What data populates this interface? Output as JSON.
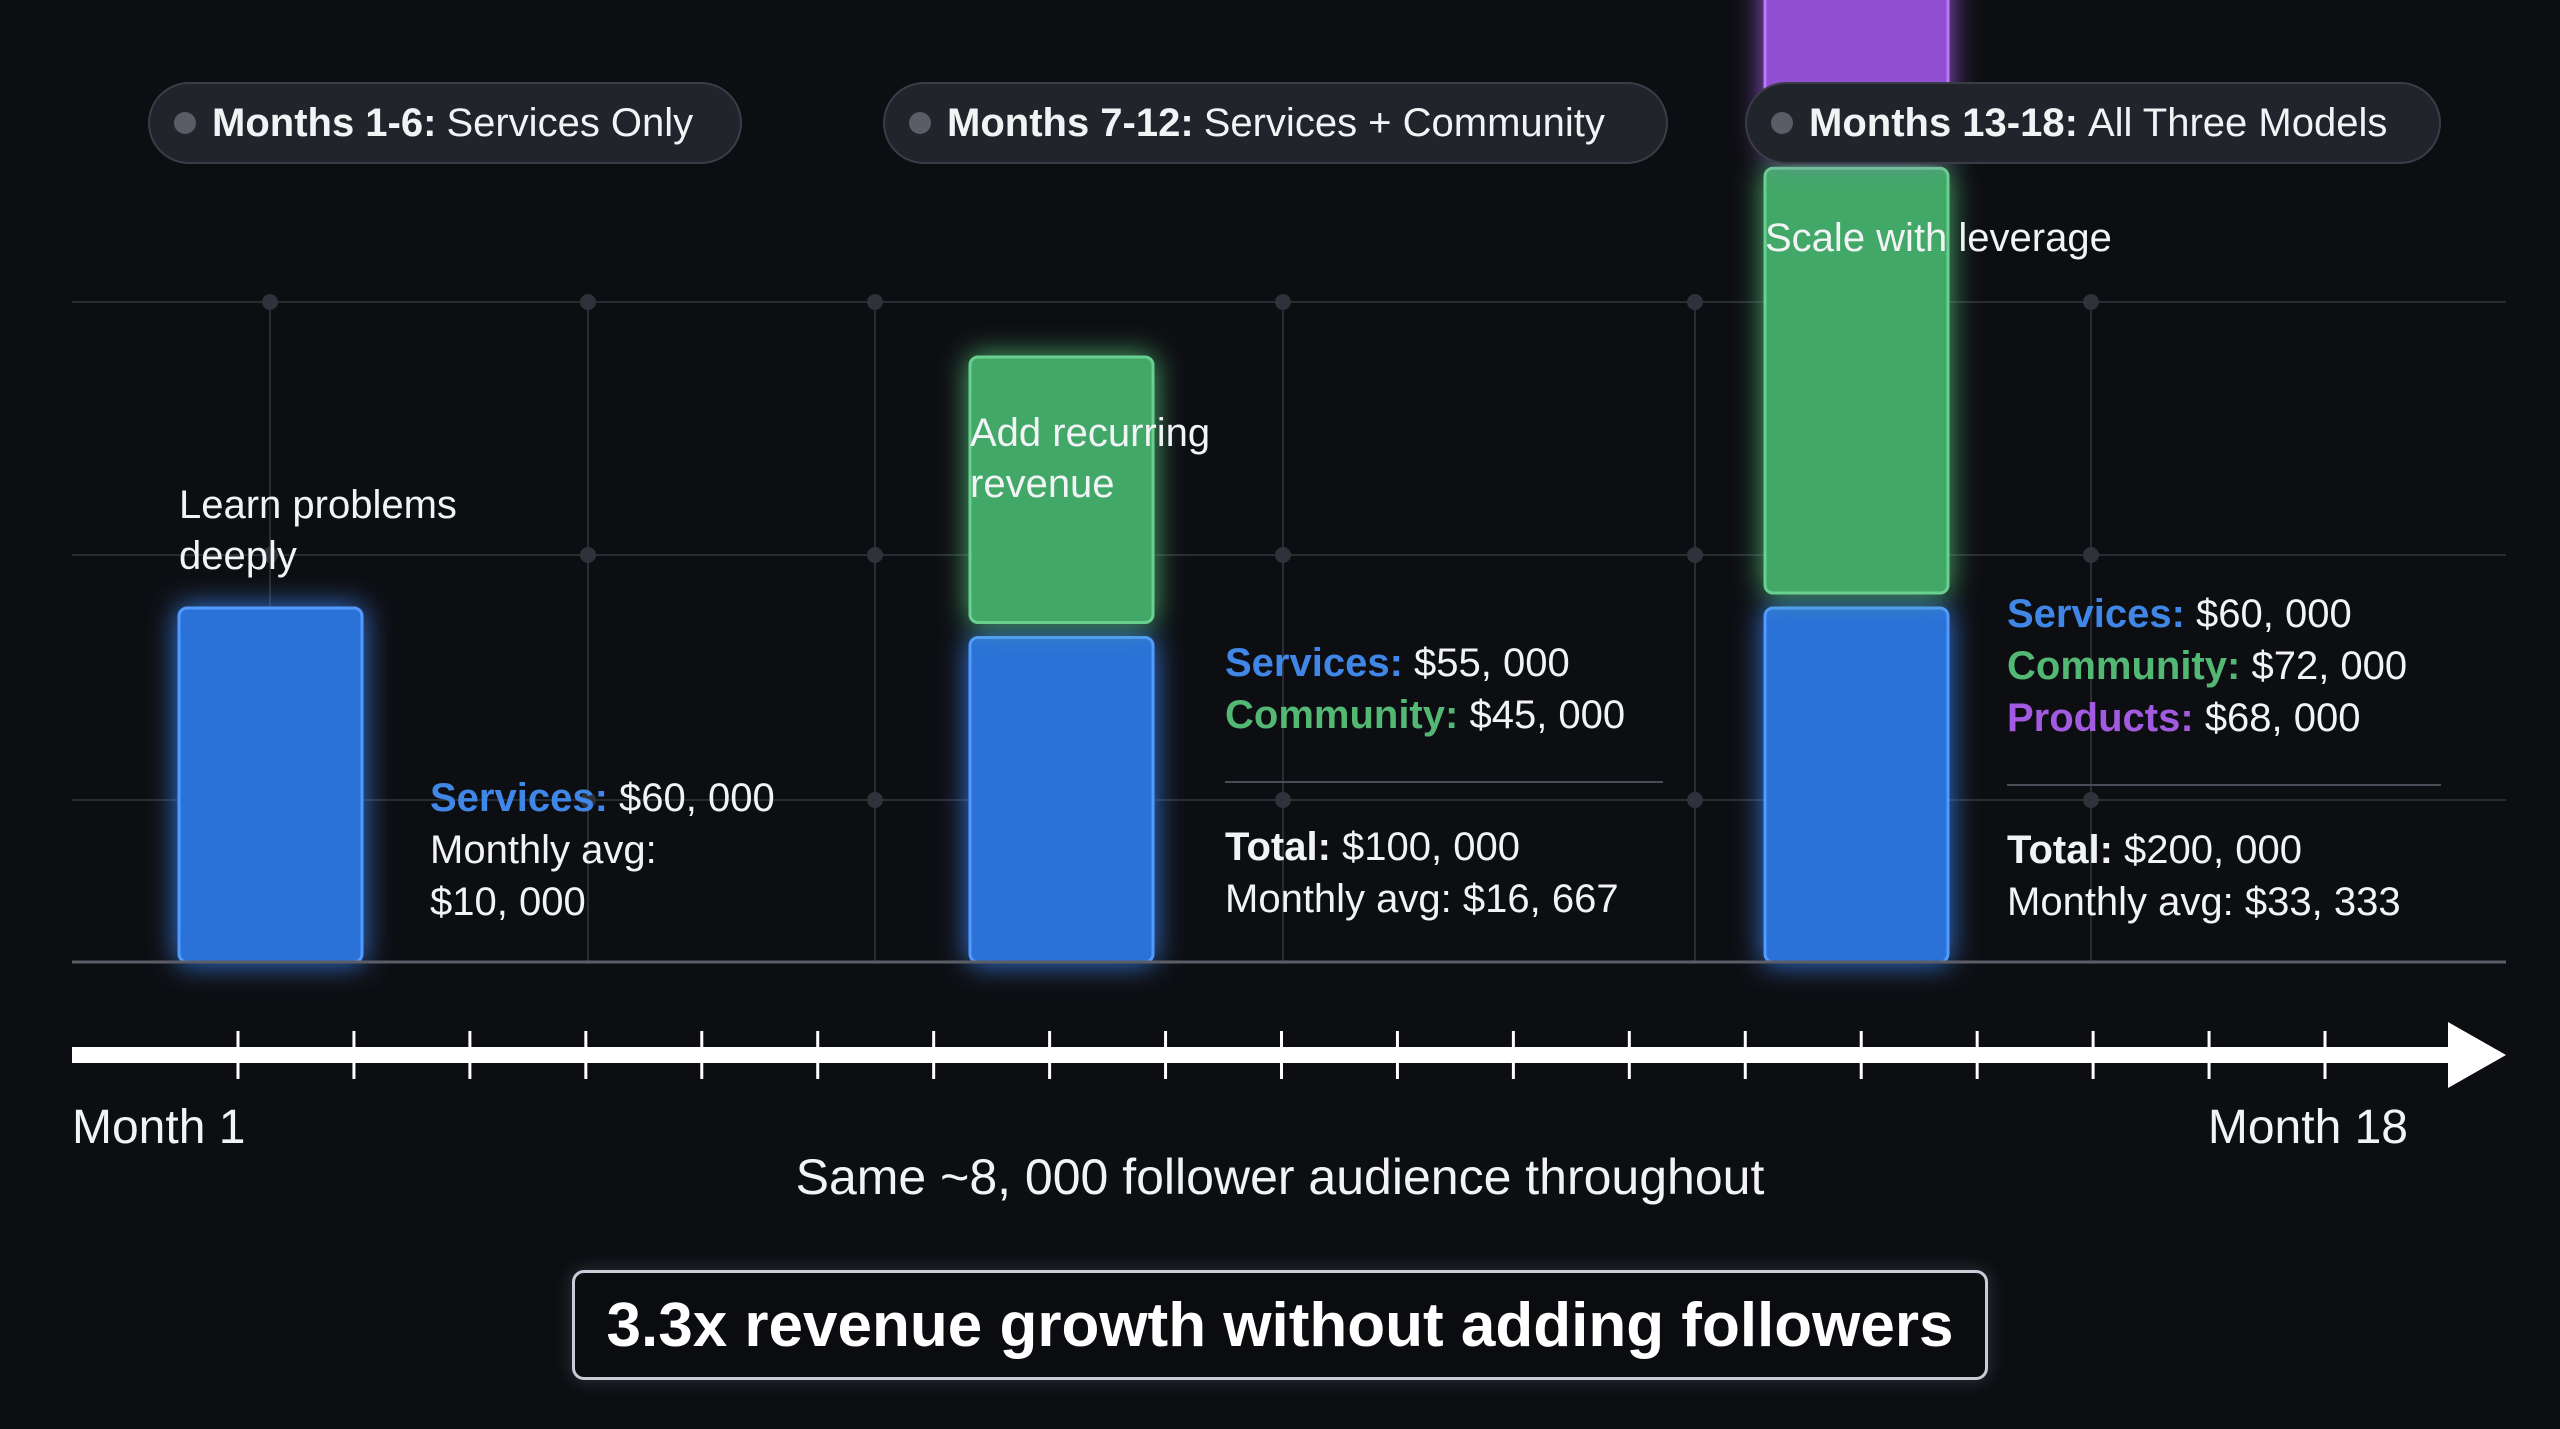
{
  "colors": {
    "background": "#0d0e12",
    "services": "#2a72d8",
    "community": "#42a868",
    "products": "#9350d3",
    "services_text": "#3f86e6",
    "community_text": "#52b874",
    "products_text": "#a25ae0",
    "grid": "#2a2c33"
  },
  "phases": [
    {
      "strong": "Months 1-6:",
      "label": "Services Only"
    },
    {
      "strong": "Months 7-12:",
      "label": "Services + Community"
    },
    {
      "strong": "Months 13-18:",
      "label": "All Three Models"
    }
  ],
  "annotations": [
    "Learn problems deeply",
    "Add recurring revenue",
    "Scale with leverage"
  ],
  "stats": [
    {
      "lines": [
        {
          "key": "Services:",
          "value": "$60, 000",
          "type": "services"
        },
        {
          "key": "",
          "value": "Monthly avg:",
          "type": "plain"
        },
        {
          "key": "",
          "value": "$10, 000",
          "type": "plain"
        }
      ]
    },
    {
      "lines": [
        {
          "key": "Services:",
          "value": "$55, 000",
          "type": "services"
        },
        {
          "key": "Community:",
          "value": "$45, 000",
          "type": "community"
        }
      ],
      "total": {
        "key": "Total:",
        "value": "$100, 000"
      },
      "monthly": "Monthly avg: $16, 667"
    },
    {
      "lines": [
        {
          "key": "Services:",
          "value": "$60, 000",
          "type": "services"
        },
        {
          "key": "Community:",
          "value": "$72, 000",
          "type": "community"
        },
        {
          "key": "Products:",
          "value": "$68, 000",
          "type": "products"
        }
      ],
      "total": {
        "key": "Total:",
        "value": "$200, 000"
      },
      "monthly": "Monthly avg: $33, 333"
    }
  ],
  "timeline": {
    "start_label": "Month 1",
    "end_label": "Month 18",
    "tick_count": 19,
    "caption": "Same ~8, 000 follower audience throughout"
  },
  "callout": "3.3x revenue growth without adding followers",
  "chart_data": {
    "type": "bar",
    "stacked": true,
    "title": "",
    "xlabel": "",
    "ylabel": "",
    "categories": [
      "Months 1-6",
      "Months 7-12",
      "Months 13-18"
    ],
    "series": [
      {
        "name": "Services",
        "color": "#2a72d8",
        "values": [
          60000,
          55000,
          60000
        ]
      },
      {
        "name": "Community",
        "color": "#42a868",
        "values": [
          0,
          45000,
          72000
        ]
      },
      {
        "name": "Products",
        "color": "#9350d3",
        "values": [
          0,
          0,
          68000
        ]
      }
    ],
    "totals": [
      60000,
      100000,
      200000
    ],
    "monthly_avg": [
      10000,
      16667,
      33333
    ],
    "grid": true,
    "legend": "none (inline labels beside each bar)"
  }
}
